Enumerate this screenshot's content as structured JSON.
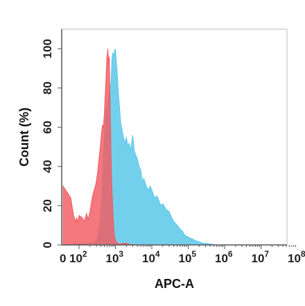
{
  "chart_data": {
    "type": "area",
    "xlabel": "APC-A",
    "ylabel": "Count  (%)",
    "x_scale": "biexponential",
    "xlim": [
      0,
      100000000
    ],
    "ylim": [
      0,
      110
    ],
    "x_ticks": [
      {
        "value": 0,
        "base": "0",
        "exp": ""
      },
      {
        "value": 100,
        "base": "10",
        "exp": "2"
      },
      {
        "value": 1000,
        "base": "10",
        "exp": "3"
      },
      {
        "value": 10000,
        "base": "10",
        "exp": "4"
      },
      {
        "value": 100000,
        "base": "10",
        "exp": "5"
      },
      {
        "value": 1000000,
        "base": "10",
        "exp": "6"
      },
      {
        "value": 10000000,
        "base": "10",
        "exp": "7"
      },
      {
        "value": 100000000,
        "base": "10",
        "exp": "8"
      }
    ],
    "y_ticks": [
      "0",
      "20",
      "40",
      "60",
      "80",
      "100"
    ],
    "series": [
      {
        "color": "#5bc8ea",
        "opacity": 0.85,
        "points": [
          [
            0,
            0
          ],
          [
            250,
            1
          ],
          [
            320,
            3
          ],
          [
            380,
            12
          ],
          [
            420,
            25
          ],
          [
            470,
            45
          ],
          [
            520,
            60
          ],
          [
            560,
            72
          ],
          [
            600,
            62
          ],
          [
            650,
            75
          ],
          [
            700,
            80
          ],
          [
            760,
            82
          ],
          [
            800,
            95
          ],
          [
            850,
            98
          ],
          [
            900,
            96
          ],
          [
            950,
            99
          ],
          [
            1000,
            100
          ],
          [
            1050,
            94
          ],
          [
            1100,
            90
          ],
          [
            1200,
            78
          ],
          [
            1300,
            70
          ],
          [
            1400,
            62
          ],
          [
            1550,
            58
          ],
          [
            1700,
            54
          ],
          [
            1850,
            52
          ],
          [
            2000,
            55
          ],
          [
            2200,
            50
          ],
          [
            2400,
            52
          ],
          [
            2600,
            48
          ],
          [
            2800,
            52
          ],
          [
            3000,
            56
          ],
          [
            3300,
            48
          ],
          [
            3600,
            46
          ],
          [
            4000,
            44
          ],
          [
            4500,
            40
          ],
          [
            5000,
            38
          ],
          [
            5500,
            32
          ],
          [
            6000,
            34
          ],
          [
            7000,
            30
          ],
          [
            8000,
            28
          ],
          [
            9000,
            30
          ],
          [
            10000,
            28
          ],
          [
            12000,
            24
          ],
          [
            14000,
            25
          ],
          [
            16000,
            22
          ],
          [
            18000,
            20
          ],
          [
            20000,
            21
          ],
          [
            25000,
            18
          ],
          [
            30000,
            17
          ],
          [
            35000,
            14
          ],
          [
            40000,
            12
          ],
          [
            50000,
            10
          ],
          [
            60000,
            8
          ],
          [
            70000,
            7
          ],
          [
            80000,
            5
          ],
          [
            100000,
            4
          ],
          [
            130000,
            3
          ],
          [
            170000,
            2
          ],
          [
            250000,
            1
          ],
          [
            400000,
            0.5
          ],
          [
            600000,
            0
          ]
        ]
      },
      {
        "color": "#f15a60",
        "opacity": 0.82,
        "points": [
          [
            0,
            0
          ],
          [
            0,
            30
          ],
          [
            8,
            24
          ],
          [
            20,
            15
          ],
          [
            35,
            12
          ],
          [
            50,
            14
          ],
          [
            65,
            11
          ],
          [
            80,
            13
          ],
          [
            100,
            15
          ],
          [
            120,
            14
          ],
          [
            140,
            12
          ],
          [
            160,
            16
          ],
          [
            180,
            13
          ],
          [
            200,
            17
          ],
          [
            230,
            24
          ],
          [
            260,
            28
          ],
          [
            290,
            31
          ],
          [
            320,
            36
          ],
          [
            350,
            43
          ],
          [
            380,
            49
          ],
          [
            410,
            56
          ],
          [
            440,
            61
          ],
          [
            470,
            60
          ],
          [
            500,
            68
          ],
          [
            540,
            82
          ],
          [
            580,
            95
          ],
          [
            620,
            100
          ],
          [
            650,
            92
          ],
          [
            680,
            96
          ],
          [
            720,
            70
          ],
          [
            760,
            46
          ],
          [
            800,
            30
          ],
          [
            860,
            15
          ],
          [
            920,
            6
          ],
          [
            980,
            3
          ],
          [
            1100,
            1
          ],
          [
            1300,
            0.5
          ],
          [
            1800,
            1
          ],
          [
            2300,
            0.5
          ],
          [
            3000,
            0
          ]
        ]
      }
    ],
    "grid": false,
    "legend": "none"
  }
}
